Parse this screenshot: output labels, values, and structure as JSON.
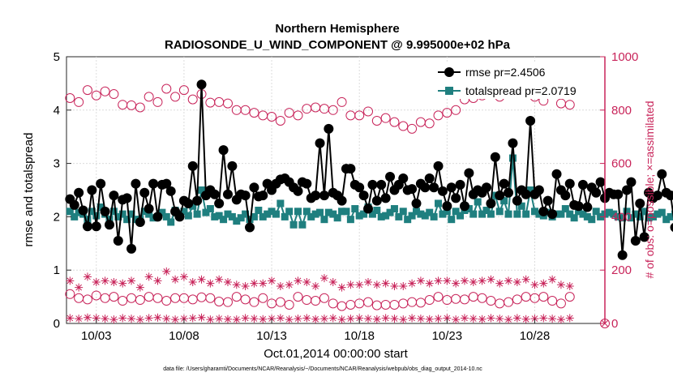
{
  "chart_data": {
    "type": "line",
    "title_line1": "Northern Hemisphere",
    "title_line2": "RADIOSONDE_U_WIND_COMPONENT @ 9.995000e+02 hPa",
    "xlabel": "Oct.01,2014 00:00:00 start",
    "ylabel_left": "rmse and totalspread",
    "ylabel_right": "# of obs: o=possible; ×=assimilated",
    "x_tick_labels": [
      "10/03",
      "10/08",
      "10/13",
      "10/18",
      "10/23",
      "10/28"
    ],
    "x_tick_days": [
      3,
      8,
      13,
      18,
      23,
      28
    ],
    "xlim_days": [
      1.3,
      32.0
    ],
    "y_left_ticks": [
      "0",
      "1",
      "2",
      "3",
      "4",
      "5"
    ],
    "ylim_left": [
      0,
      5
    ],
    "y_right_ticks": [
      "0",
      "200",
      "400",
      "600",
      "800",
      "1000"
    ],
    "ylim_right": [
      0,
      1000
    ],
    "footnote": "data file: /Users/gharamti/Documents/NCAR/Reanalysis/~/Documents/NCAR/Reanalysis/webpub/obs_diag_output_2014-10.nc",
    "legend": [
      {
        "name": "rmse pr=2.4506",
        "color": "#000000",
        "marker": "circle"
      },
      {
        "name": "totalspread pr=2.0719",
        "color": "#1f7f7f",
        "marker": "square"
      }
    ],
    "colors": {
      "rmse": "#000000",
      "spread": "#1f7f7f",
      "obs": "#c8245a"
    },
    "series": [
      {
        "name": "rmse",
        "axis": "left",
        "start_day": 1.5,
        "step_days": 0.25,
        "values": [
          2.33,
          2.22,
          2.45,
          2.12,
          1.82,
          2.5,
          1.82,
          2.62,
          2.1,
          1.85,
          2.4,
          1.55,
          2.32,
          2.35,
          1.4,
          2.62,
          1.9,
          2.45,
          2.15,
          2.62,
          2.0,
          2.6,
          2.62,
          2.48,
          2.1,
          2.0,
          2.3,
          2.25,
          2.95,
          2.3,
          4.48,
          2.4,
          2.5,
          2.42,
          2.25,
          3.25,
          2.42,
          2.95,
          2.32,
          2.42,
          2.4,
          1.8,
          2.55,
          2.38,
          2.4,
          2.62,
          2.5,
          2.62,
          2.7,
          2.72,
          2.65,
          2.55,
          2.48,
          2.65,
          2.62,
          2.35,
          2.4,
          3.38,
          2.4,
          3.65,
          2.45,
          2.4,
          2.3,
          2.9,
          2.9,
          2.6,
          2.55,
          2.4,
          2.15,
          2.6,
          2.3,
          2.6,
          2.35,
          2.75,
          2.5,
          2.6,
          2.72,
          2.5,
          2.52,
          2.25,
          2.62,
          2.55,
          2.72,
          2.55,
          2.95,
          2.48,
          2.2,
          2.55,
          2.35,
          2.6,
          2.2,
          2.82,
          2.42,
          2.5,
          2.45,
          2.55,
          2.25,
          3.12,
          2.4,
          2.62,
          2.45,
          3.38,
          2.3,
          2.5,
          2.42,
          3.8,
          2.42,
          2.5,
          2.1,
          2.3,
          2.05,
          2.8,
          2.5,
          2.4,
          2.62,
          2.22,
          2.2,
          2.6,
          2.18,
          2.55,
          2.45,
          2.65,
          2.35,
          2.45,
          2.42,
          2.42,
          1.28,
          2.5,
          2.65,
          1.55,
          2.25,
          1.62,
          2.45,
          2.35,
          2.4,
          2.8,
          2.45,
          2.4,
          1.8,
          2.55,
          2.32,
          1.5,
          2.72,
          2.45,
          2.55,
          2.45,
          2.35,
          2.4,
          2.45,
          2.55,
          2.5,
          3.6,
          2.45,
          2.5,
          2.25,
          2.55,
          1.32,
          2.35,
          0.95,
          2.85,
          1.4,
          2.45,
          2.58,
          2.4,
          2.55,
          2.12
        ]
      },
      {
        "name": "totalspread",
        "axis": "left",
        "start_day": 1.5,
        "step_days": 0.25,
        "values": [
          2.1,
          2.0,
          2.08,
          2.05,
          1.95,
          2.1,
          2.02,
          2.18,
          2.05,
          1.95,
          2.1,
          2.0,
          2.05,
          1.95,
          2.05,
          1.95,
          1.95,
          2.1,
          2.05,
          1.98,
          2.0,
          2.08,
          2.0,
          1.9,
          2.12,
          2.05,
          2.1,
          2.02,
          2.2,
          2.05,
          2.5,
          2.08,
          2.15,
          2.0,
          2.02,
          1.95,
          2.05,
          2.0,
          1.92,
          1.98,
          2.05,
          1.95,
          2.0,
          2.12,
          2.0,
          2.05,
          2.1,
          2.05,
          2.25,
          2.0,
          2.1,
          1.85,
          2.1,
          1.85,
          2.1,
          2.0,
          2.05,
          2.08,
          1.95,
          2.08,
          2.05,
          1.98,
          2.1,
          2.1,
          1.95,
          2.15,
          2.02,
          2.05,
          2.18,
          2.05,
          2.12,
          2.0,
          2.02,
          2.08,
          2.15,
          2.0,
          2.1,
          1.95,
          2.02,
          2.1,
          2.05,
          2.02,
          2.08,
          2.0,
          2.25,
          2.05,
          2.1,
          1.95,
          2.1,
          2.02,
          2.12,
          2.15,
          2.05,
          2.28,
          2.05,
          2.12,
          2.05,
          2.4,
          2.1,
          2.3,
          2.05,
          3.1,
          2.05,
          2.2,
          2.05,
          2.5,
          2.1,
          2.05,
          2.02,
          2.08,
          2.0,
          2.05,
          2.05,
          2.15,
          2.05,
          1.98,
          2.1,
          2.05,
          2.0,
          1.95,
          2.1,
          2.0,
          2.05,
          2.08,
          2.05,
          2.0,
          1.98,
          2.1,
          1.98,
          2.05,
          2.0,
          2.1,
          1.98,
          2.0,
          2.05,
          2.08,
          1.95,
          2.0,
          2.05,
          2.0,
          2.08,
          2.0,
          1.95,
          2.02,
          1.95,
          2.0,
          2.1,
          2.05,
          1.98,
          1.95,
          1.9,
          1.95,
          2.05,
          1.9,
          1.95,
          2.05,
          1.95,
          2.02,
          1.98,
          2.05,
          2.05,
          2.0,
          1.95,
          2.0,
          1.98,
          1.8
        ]
      },
      {
        "name": "obs possible (upper band)",
        "axis": "right",
        "start_day": 1.5,
        "step_days": 0.5,
        "values": [
          845,
          830,
          875,
          855,
          870,
          860,
          820,
          818,
          810,
          850,
          830,
          880,
          850,
          875,
          840,
          860,
          828,
          830,
          825,
          800,
          800,
          790,
          780,
          775,
          760,
          790,
          780,
          805,
          810,
          805,
          800,
          830,
          780,
          780,
          795,
          760,
          770,
          755,
          740,
          730,
          755,
          750,
          780,
          790,
          800,
          840,
          845,
          855,
          870,
          850,
          875,
          865,
          860,
          850,
          835,
          875,
          825,
          820
        ]
      },
      {
        "name": "obs possible (lower band)",
        "axis": "right",
        "start_day": 1.5,
        "step_days": 0.5,
        "values": [
          110,
          95,
          90,
          105,
          95,
          100,
          85,
          95,
          88,
          100,
          95,
          85,
          95,
          95,
          90,
          98,
          95,
          82,
          80,
          100,
          90,
          80,
          95,
          75,
          80,
          70,
          100,
          88,
          85,
          95,
          75,
          65,
          70,
          75,
          80,
          68,
          70,
          70,
          75,
          80,
          78,
          88,
          100,
          88,
          92,
          90,
          100,
          95,
          85,
          75,
          80,
          90,
          100,
          95,
          100,
          85,
          75,
          100
        ]
      },
      {
        "name": "obs assimilated (upper band)",
        "axis": "right",
        "start_day": 1.5,
        "step_days": 0.5,
        "values": [
          160,
          135,
          175,
          155,
          160,
          155,
          150,
          160,
          135,
          175,
          160,
          195,
          165,
          175,
          155,
          165,
          150,
          165,
          155,
          145,
          140,
          150,
          150,
          160,
          140,
          145,
          160,
          155,
          140,
          170,
          155,
          135,
          145,
          145,
          155,
          145,
          150,
          140,
          140,
          150,
          160,
          150,
          160,
          160,
          150,
          160,
          155,
          160,
          165,
          150,
          160,
          155,
          165,
          145,
          150,
          165,
          145,
          140
        ]
      },
      {
        "name": "obs assimilated (bottom band)",
        "axis": "right",
        "start_day": 1.5,
        "step_days": 0.5,
        "values": [
          20,
          18,
          22,
          20,
          18,
          15,
          20,
          18,
          15,
          20,
          22,
          18,
          15,
          18,
          20,
          22,
          15,
          18,
          16,
          15,
          20,
          18,
          16,
          18,
          20,
          15,
          18,
          20,
          16,
          18,
          20,
          15,
          18,
          20,
          18,
          16,
          20,
          18,
          15,
          20,
          18,
          16,
          18,
          20,
          15,
          20,
          18,
          16,
          20,
          18,
          15,
          20,
          16,
          18,
          20,
          18,
          15,
          20
        ]
      }
    ]
  }
}
